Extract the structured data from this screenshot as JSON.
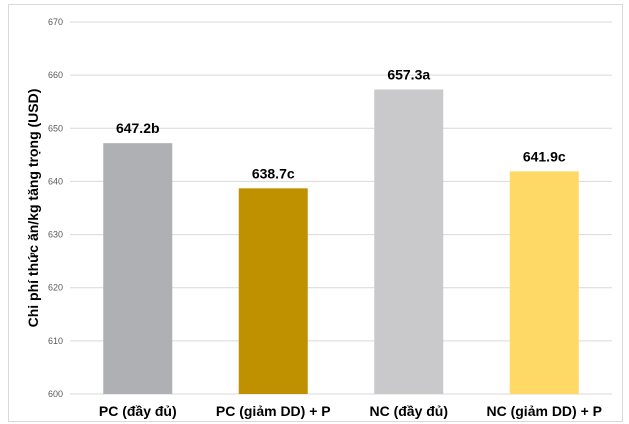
{
  "chart_data": {
    "type": "bar",
    "ylabel": "Chi phí thức ăn/kg tăng trọng (USD)",
    "ylim": [
      600,
      670
    ],
    "yticks": [
      "600",
      "610",
      "620",
      "630",
      "640",
      "650",
      "660",
      "670"
    ],
    "grid": true,
    "categories": [
      "PC (đầy đủ)",
      "PC (giảm DD) + P",
      "NC (đầy đủ)",
      "NC (giảm DD) + P"
    ],
    "values": [
      647.2,
      638.7,
      657.3,
      641.9
    ],
    "data_labels": [
      "647.2b",
      "638.7c",
      "657.3a",
      "641.9c"
    ],
    "colors": [
      "#aeb0b3",
      "#bf9000",
      "#c9c9cb",
      "#ffd966"
    ]
  }
}
